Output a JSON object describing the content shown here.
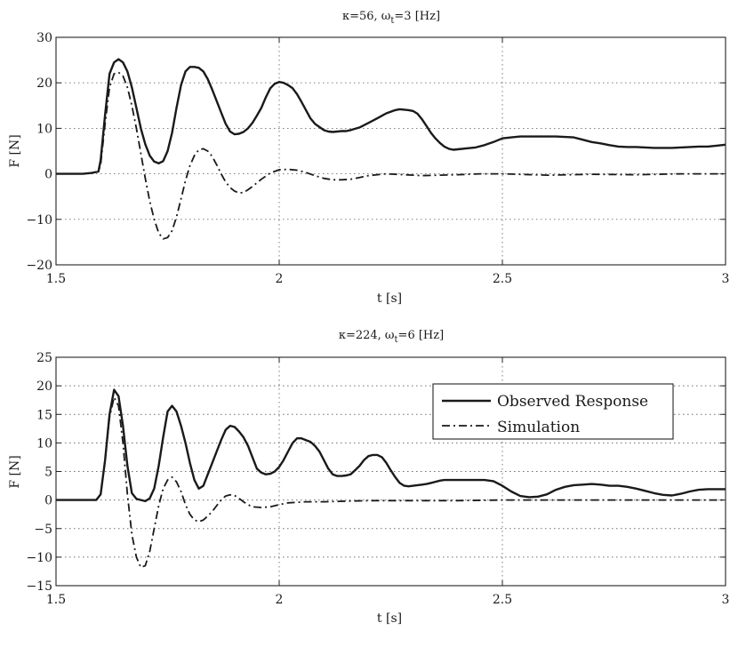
{
  "chart_data": [
    {
      "type": "line",
      "title": "κ=56,  ω_t=3 [Hz]",
      "title_main": "κ=56,  ω",
      "title_sub": "t",
      "title_rest": "=3 [Hz]",
      "xlabel": "t [s]",
      "ylabel": "F [N]",
      "xlim": [
        1.5,
        3
      ],
      "ylim": [
        -20,
        30
      ],
      "xticks": [
        1.5,
        2,
        2.5,
        3
      ],
      "xtick_labels": [
        "1.5",
        "2",
        "2.5",
        "3"
      ],
      "yticks": [
        -20,
        -10,
        0,
        10,
        20,
        30
      ],
      "ytick_labels": [
        "−20",
        "−10",
        "0",
        "10",
        "20",
        "30"
      ],
      "grid": true,
      "series": [
        {
          "style": "solid",
          "x": [
            1.5,
            1.52,
            1.54,
            1.56,
            1.58,
            1.595,
            1.6,
            1.61,
            1.62,
            1.63,
            1.64,
            1.65,
            1.66,
            1.67,
            1.68,
            1.69,
            1.7,
            1.71,
            1.72,
            1.73,
            1.74,
            1.75,
            1.76,
            1.77,
            1.78,
            1.79,
            1.8,
            1.81,
            1.82,
            1.83,
            1.84,
            1.85,
            1.86,
            1.87,
            1.88,
            1.89,
            1.9,
            1.91,
            1.92,
            1.93,
            1.94,
            1.95,
            1.96,
            1.97,
            1.98,
            1.99,
            2.0,
            2.01,
            2.02,
            2.03,
            2.04,
            2.05,
            2.06,
            2.07,
            2.08,
            2.09,
            2.1,
            2.11,
            2.12,
            2.13,
            2.14,
            2.15,
            2.16,
            2.18,
            2.2,
            2.22,
            2.24,
            2.26,
            2.27,
            2.28,
            2.29,
            2.3,
            2.31,
            2.32,
            2.33,
            2.34,
            2.35,
            2.36,
            2.37,
            2.38,
            2.39,
            2.4,
            2.42,
            2.44,
            2.46,
            2.48,
            2.5,
            2.52,
            2.54,
            2.56,
            2.58,
            2.6,
            2.62,
            2.64,
            2.66,
            2.68,
            2.7,
            2.72,
            2.74,
            2.76,
            2.78,
            2.8,
            2.82,
            2.84,
            2.86,
            2.88,
            2.9,
            2.92,
            2.94,
            2.96,
            2.98,
            3.0
          ],
          "y": [
            0,
            0,
            0,
            0,
            0.2,
            0.5,
            3,
            13,
            22,
            24.5,
            25.2,
            24.5,
            22.5,
            19,
            14.5,
            10,
            6.5,
            4,
            2.7,
            2.3,
            2.8,
            5,
            9,
            14.5,
            19.5,
            22.5,
            23.5,
            23.5,
            23.3,
            22.5,
            20.8,
            18.5,
            16,
            13.5,
            11,
            9.3,
            8.7,
            8.8,
            9.2,
            10,
            11.2,
            12.8,
            14.5,
            16.8,
            18.8,
            19.8,
            20.2,
            20,
            19.5,
            18.8,
            17.5,
            15.8,
            14,
            12.2,
            11,
            10.3,
            9.6,
            9.3,
            9.2,
            9.3,
            9.4,
            9.4,
            9.6,
            10.2,
            11.2,
            12.2,
            13.3,
            14,
            14.2,
            14.1,
            14,
            13.8,
            13.2,
            12,
            10.5,
            9,
            7.8,
            6.8,
            6,
            5.5,
            5.3,
            5.4,
            5.6,
            5.8,
            6.3,
            7,
            7.8,
            8,
            8.2,
            8.2,
            8.2,
            8.2,
            8.2,
            8.1,
            8,
            7.5,
            7,
            6.7,
            6.3,
            6,
            5.9,
            5.9,
            5.8,
            5.7,
            5.7,
            5.7,
            5.8,
            5.9,
            6,
            6,
            6.2,
            6.4
          ]
        },
        {
          "style": "dash-dot",
          "x": [
            1.5,
            1.52,
            1.54,
            1.56,
            1.58,
            1.595,
            1.6,
            1.61,
            1.62,
            1.63,
            1.64,
            1.65,
            1.66,
            1.67,
            1.68,
            1.69,
            1.7,
            1.71,
            1.72,
            1.73,
            1.74,
            1.75,
            1.76,
            1.77,
            1.78,
            1.79,
            1.8,
            1.81,
            1.82,
            1.83,
            1.84,
            1.85,
            1.86,
            1.87,
            1.88,
            1.89,
            1.9,
            1.91,
            1.92,
            1.93,
            1.94,
            1.95,
            1.96,
            1.98,
            2.0,
            2.02,
            2.04,
            2.06,
            2.08,
            2.1,
            2.12,
            2.14,
            2.16,
            2.18,
            2.2,
            2.24,
            2.28,
            2.32,
            2.36,
            2.4,
            2.45,
            2.5,
            2.6,
            2.7,
            2.8,
            2.9,
            3.0
          ],
          "y": [
            0,
            0,
            0,
            0,
            0.2,
            0.5,
            2,
            11,
            19,
            22,
            22.3,
            21.5,
            19,
            15,
            10,
            4.5,
            -1,
            -6,
            -10,
            -13,
            -14.3,
            -14,
            -12.5,
            -9.5,
            -5.5,
            -1.5,
            1.8,
            4,
            5.3,
            5.5,
            5,
            3.8,
            2,
            0,
            -1.8,
            -3,
            -3.8,
            -4.2,
            -4.1,
            -3.5,
            -2.8,
            -2,
            -1.2,
            0.2,
            0.9,
            1,
            0.8,
            0.3,
            -0.4,
            -1,
            -1.3,
            -1.3,
            -1.2,
            -0.8,
            -0.4,
            0,
            -0.2,
            -0.4,
            -0.3,
            -0.2,
            0,
            0,
            -0.3,
            -0.1,
            -0.2,
            0,
            0
          ]
        }
      ]
    },
    {
      "type": "line",
      "title": "κ=224,  ω_t=6 [Hz]",
      "title_main": "κ=224,  ω",
      "title_sub": "t",
      "title_rest": "=6 [Hz]",
      "xlabel": "t [s]",
      "ylabel": "F [N]",
      "xlim": [
        1.5,
        3
      ],
      "ylim": [
        -15,
        25
      ],
      "xticks": [
        1.5,
        2,
        2.5,
        3
      ],
      "xtick_labels": [
        "1.5",
        "2",
        "2.5",
        "3"
      ],
      "yticks": [
        -15,
        -10,
        -5,
        0,
        5,
        10,
        15,
        20,
        25
      ],
      "ytick_labels": [
        "−15",
        "−10",
        "−5",
        "0",
        "5",
        "10",
        "15",
        "20",
        "25"
      ],
      "grid": true,
      "legend": {
        "position": "upper-right",
        "entries": [
          {
            "label": "Observed Response",
            "style": "solid"
          },
          {
            "label": "Simulation",
            "style": "dash-dot"
          }
        ]
      },
      "series": [
        {
          "name": "Observed Response",
          "style": "solid",
          "x": [
            1.5,
            1.55,
            1.59,
            1.6,
            1.61,
            1.62,
            1.63,
            1.64,
            1.65,
            1.66,
            1.67,
            1.68,
            1.69,
            1.7,
            1.71,
            1.72,
            1.73,
            1.74,
            1.75,
            1.76,
            1.77,
            1.78,
            1.79,
            1.8,
            1.81,
            1.82,
            1.83,
            1.84,
            1.85,
            1.86,
            1.87,
            1.88,
            1.89,
            1.9,
            1.91,
            1.92,
            1.93,
            1.94,
            1.95,
            1.96,
            1.97,
            1.98,
            1.99,
            2.0,
            2.01,
            2.02,
            2.03,
            2.04,
            2.05,
            2.06,
            2.07,
            2.08,
            2.09,
            2.1,
            2.11,
            2.12,
            2.13,
            2.14,
            2.15,
            2.16,
            2.17,
            2.18,
            2.19,
            2.2,
            2.21,
            2.22,
            2.23,
            2.24,
            2.25,
            2.26,
            2.27,
            2.28,
            2.29,
            2.3,
            2.31,
            2.32,
            2.33,
            2.34,
            2.35,
            2.36,
            2.37,
            2.38,
            2.4,
            2.42,
            2.44,
            2.46,
            2.48,
            2.5,
            2.52,
            2.54,
            2.56,
            2.58,
            2.6,
            2.62,
            2.64,
            2.66,
            2.68,
            2.7,
            2.72,
            2.74,
            2.76,
            2.78,
            2.8,
            2.82,
            2.84,
            2.86,
            2.88,
            2.9,
            2.92,
            2.94,
            2.96,
            2.98,
            3.0
          ],
          "y": [
            0,
            0,
            0,
            1,
            7,
            15,
            19.3,
            18.2,
            13,
            6,
            1.2,
            0.2,
            0,
            -0.2,
            0.3,
            2,
            6,
            11,
            15.5,
            16.5,
            15.5,
            13,
            10,
            6.5,
            3.5,
            2,
            2.5,
            4.5,
            6.5,
            8.5,
            10.5,
            12.3,
            13,
            12.8,
            12,
            11,
            9.5,
            7.5,
            5.5,
            4.8,
            4.5,
            4.6,
            5,
            5.8,
            7,
            8.5,
            10,
            10.8,
            10.8,
            10.5,
            10.2,
            9.5,
            8.5,
            7,
            5.5,
            4.5,
            4.2,
            4.2,
            4.3,
            4.5,
            5.2,
            6,
            7,
            7.7,
            7.9,
            7.9,
            7.5,
            6.5,
            5.2,
            4,
            3,
            2.5,
            2.4,
            2.5,
            2.6,
            2.7,
            2.8,
            3,
            3.2,
            3.4,
            3.5,
            3.5,
            3.5,
            3.5,
            3.5,
            3.5,
            3.3,
            2.5,
            1.5,
            0.7,
            0.5,
            0.6,
            1,
            1.8,
            2.3,
            2.6,
            2.7,
            2.8,
            2.7,
            2.5,
            2.5,
            2.3,
            2,
            1.6,
            1.2,
            0.9,
            0.8,
            1.1,
            1.5,
            1.8,
            1.9,
            1.9,
            1.9
          ]
        },
        {
          "name": "Simulation",
          "style": "dash-dot",
          "x": [
            1.5,
            1.55,
            1.59,
            1.6,
            1.61,
            1.62,
            1.63,
            1.64,
            1.65,
            1.66,
            1.67,
            1.68,
            1.69,
            1.7,
            1.71,
            1.72,
            1.73,
            1.74,
            1.75,
            1.76,
            1.77,
            1.78,
            1.79,
            1.8,
            1.81,
            1.82,
            1.83,
            1.84,
            1.85,
            1.86,
            1.87,
            1.88,
            1.89,
            1.9,
            1.91,
            1.92,
            1.93,
            1.94,
            1.96,
            1.98,
            2.0,
            2.02,
            2.04,
            2.06,
            2.1,
            2.15,
            2.2,
            2.3,
            2.4,
            2.5,
            2.6,
            2.7,
            2.8,
            2.9,
            3.0
          ],
          "y": [
            0,
            0,
            0,
            1,
            7,
            14.5,
            18,
            16.5,
            10,
            1,
            -6,
            -10,
            -11.8,
            -11.5,
            -9,
            -5,
            -1,
            2,
            3.5,
            4,
            3.2,
            1.5,
            -0.8,
            -2.5,
            -3.5,
            -3.8,
            -3.5,
            -2.8,
            -2,
            -1,
            0,
            0.7,
            0.9,
            0.8,
            0.3,
            -0.3,
            -0.8,
            -1.2,
            -1.3,
            -1.2,
            -0.8,
            -0.5,
            -0.4,
            -0.3,
            -0.3,
            -0.2,
            -0.1,
            -0.1,
            -0.1,
            0,
            0,
            0,
            0,
            0,
            0
          ]
        }
      ]
    }
  ]
}
